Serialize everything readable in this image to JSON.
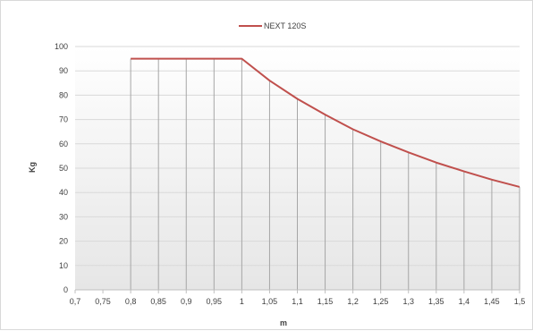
{
  "chart_data": {
    "type": "line",
    "title": "",
    "xlabel": "m",
    "ylabel": "Kg",
    "xlim": [
      0.7,
      1.5
    ],
    "ylim": [
      0,
      100
    ],
    "x_ticks": [
      "0,7",
      "0,75",
      "0,8",
      "0,85",
      "0,9",
      "0,95",
      "1",
      "1,05",
      "1,1",
      "1,15",
      "1,2",
      "1,25",
      "1,3",
      "1,35",
      "1,4",
      "1,45",
      "1,5"
    ],
    "y_ticks": [
      "0",
      "10",
      "20",
      "30",
      "40",
      "50",
      "60",
      "70",
      "80",
      "90",
      "100"
    ],
    "grid": "horizontal",
    "legend_position": "top",
    "series": [
      {
        "name": "NEXT 120S",
        "color": "#c0504d",
        "x": [
          0.8,
          0.85,
          0.9,
          0.95,
          1.0,
          1.05,
          1.1,
          1.15,
          1.2,
          1.25,
          1.3,
          1.35,
          1.4,
          1.45,
          1.5
        ],
        "y": [
          95,
          95,
          95,
          95,
          95,
          86,
          78.5,
          72,
          66,
          61,
          56.5,
          52.3,
          48.7,
          45.3,
          42.3
        ]
      }
    ],
    "drop_lines": true,
    "drop_line_color": "#a6a6a6"
  }
}
